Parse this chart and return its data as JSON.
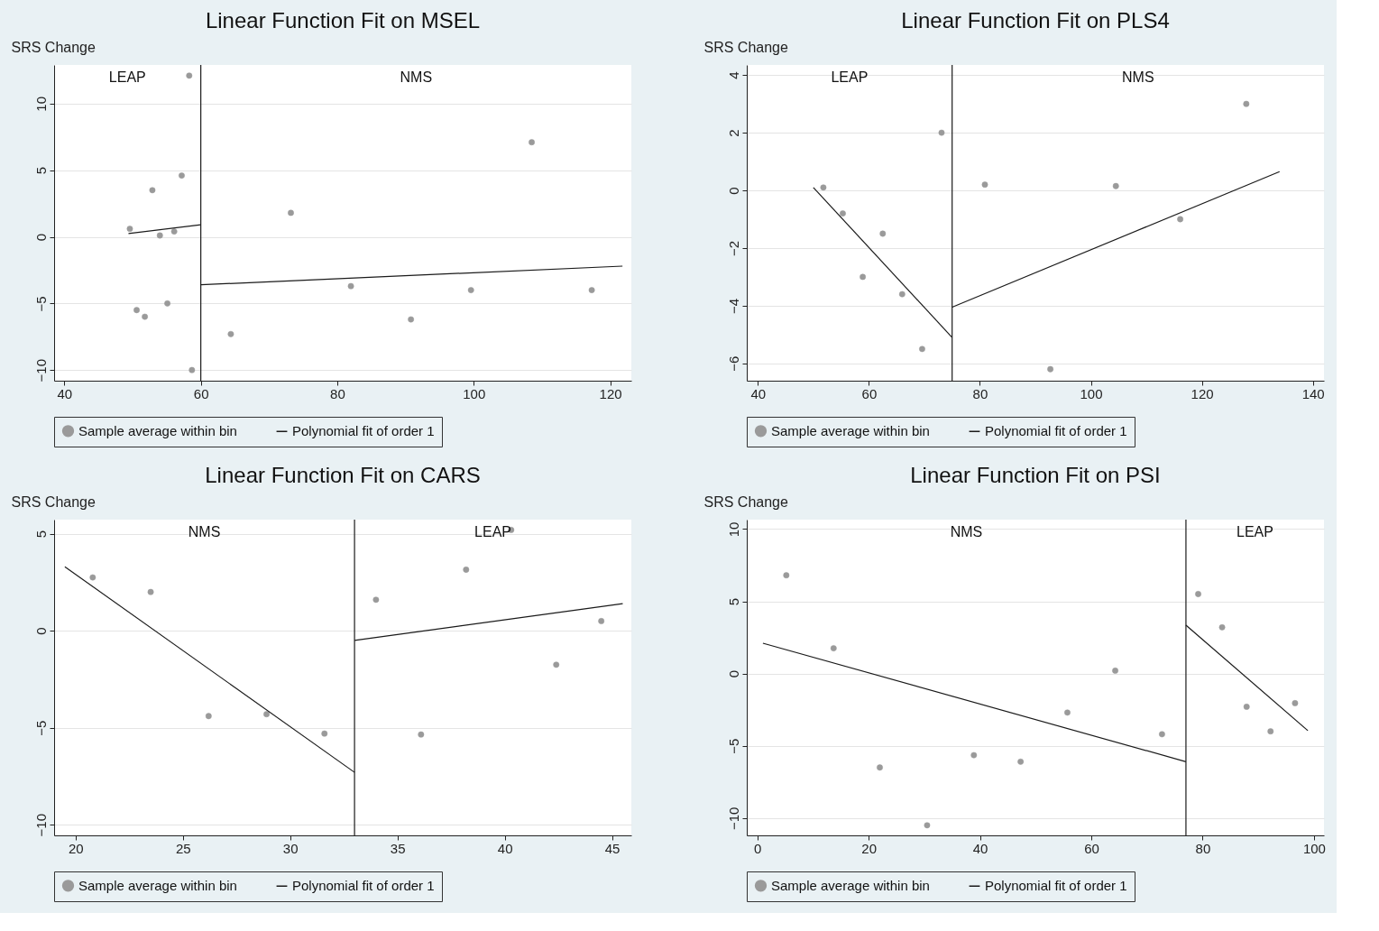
{
  "chart_data": [
    {
      "type": "scatter",
      "title": "Linear Function Fit on MSEL",
      "ylabel": "SRS Change",
      "xlim": [
        38.5,
        123.1
      ],
      "ylim": [
        -10.8,
        12.9
      ],
      "xticks": [
        40,
        60,
        80,
        100,
        120
      ],
      "yticks": [
        -10,
        -5,
        0,
        5,
        10
      ],
      "grid": "y",
      "legend": "bottom",
      "series": [
        {
          "name": "Sample average within bin",
          "type": "scatter",
          "marker": "circle",
          "color": "#9a9a9a",
          "x": [
            58.3,
            52.9,
            57.2,
            49.6,
            54.0,
            56.1,
            50.6,
            51.8,
            55.1,
            58.7,
            73.2,
            108.5,
            82.0,
            64.4,
            90.8,
            99.6,
            117.3
          ],
          "values": [
            12.1,
            3.5,
            4.6,
            0.6,
            0.1,
            0.4,
            -5.5,
            -6.0,
            -5.0,
            -10.0,
            1.8,
            7.1,
            -3.7,
            -7.3,
            -6.2,
            -4.0,
            -4.0
          ]
        },
        {
          "name": "Polynomial fit of order 1",
          "type": "line",
          "color": "#1a1a1a",
          "x": [
            49.4,
            60
          ],
          "values": [
            0.25,
            0.9
          ]
        },
        {
          "type": "line",
          "color": "#1a1a1a",
          "x": [
            60,
            121.8
          ],
          "values": [
            -3.6,
            -2.2
          ]
        }
      ],
      "ref_lines": [
        {
          "axis": "x",
          "value": 60,
          "color": "#1a1a1a"
        }
      ],
      "annotations": [
        "LEAP",
        "NMS"
      ]
    },
    {
      "type": "scatter",
      "title": "Linear Function Fit on PLS4",
      "ylabel": "SRS Change",
      "xlim": [
        38,
        142
      ],
      "ylim": [
        -6.6,
        4.35
      ],
      "xticks": [
        40,
        60,
        80,
        100,
        120,
        140
      ],
      "yticks": [
        -6,
        -4,
        -2,
        0,
        2,
        4
      ],
      "grid": "y",
      "legend": "bottom",
      "series": [
        {
          "name": "Sample average within bin",
          "type": "scatter",
          "marker": "circle",
          "color": "#9a9a9a",
          "x": [
            51.8,
            55.3,
            62.5,
            58.9,
            66.0,
            69.6,
            73.1,
            80.9,
            104.5,
            116.1,
            128.0,
            92.7
          ],
          "values": [
            0.1,
            -0.8,
            -1.5,
            -3.0,
            -3.6,
            -5.5,
            2.0,
            0.2,
            0.15,
            -1.0,
            3.0,
            -6.2
          ]
        },
        {
          "name": "Polynomial fit of order 1",
          "type": "line",
          "color": "#1a1a1a",
          "x": [
            50.0,
            75
          ],
          "values": [
            0.1,
            -5.1
          ]
        },
        {
          "type": "line",
          "color": "#1a1a1a",
          "x": [
            75,
            134.0
          ],
          "values": [
            -4.05,
            0.65
          ]
        }
      ],
      "ref_lines": [
        {
          "axis": "x",
          "value": 75,
          "color": "#1a1a1a"
        }
      ],
      "annotations": [
        "LEAP",
        "NMS"
      ]
    },
    {
      "type": "scatter",
      "title": "Linear Function Fit on CARS",
      "ylabel": "SRS Change",
      "xlim": [
        19.0,
        45.9
      ],
      "ylim": [
        -10.55,
        5.73
      ],
      "xticks": [
        20,
        25,
        30,
        35,
        40,
        45
      ],
      "yticks": [
        -10,
        -5,
        0,
        5
      ],
      "grid": "y",
      "legend": "bottom",
      "series": [
        {
          "name": "Sample average within bin",
          "type": "scatter",
          "marker": "circle",
          "color": "#9a9a9a",
          "x": [
            20.8,
            23.5,
            26.2,
            28.9,
            31.6,
            34.0,
            38.2,
            40.3,
            36.1,
            42.4,
            44.5
          ],
          "values": [
            2.75,
            2.0,
            -4.4,
            -4.3,
            -5.3,
            1.6,
            3.15,
            5.2,
            -5.35,
            -1.75,
            0.5
          ]
        },
        {
          "name": "Polynomial fit of order 1",
          "type": "line",
          "color": "#1a1a1a",
          "x": [
            19.5,
            33
          ],
          "values": [
            3.3,
            -7.3
          ]
        },
        {
          "type": "line",
          "color": "#1a1a1a",
          "x": [
            33,
            45.5
          ],
          "values": [
            -0.5,
            1.4
          ]
        }
      ],
      "ref_lines": [
        {
          "axis": "x",
          "value": 33,
          "color": "#1a1a1a"
        }
      ],
      "annotations": [
        "NMS",
        "LEAP"
      ]
    },
    {
      "type": "scatter",
      "title": "Linear Function Fit on PSI",
      "ylabel": "SRS Change",
      "xlim": [
        -1.9,
        101.8
      ],
      "ylim": [
        -11.2,
        10.65
      ],
      "xticks": [
        0,
        20,
        40,
        60,
        80,
        100
      ],
      "yticks": [
        -10,
        -5,
        0,
        5,
        10
      ],
      "grid": "y",
      "legend": "bottom",
      "series": [
        {
          "name": "Sample average within bin",
          "type": "scatter",
          "marker": "circle",
          "color": "#9a9a9a",
          "x": [
            5.2,
            13.7,
            22.0,
            30.5,
            38.9,
            47.3,
            55.7,
            64.3,
            72.7,
            79.2,
            83.5,
            87.9,
            92.2,
            96.6
          ],
          "values": [
            6.8,
            1.75,
            -6.5,
            -10.5,
            -5.65,
            -6.1,
            -2.7,
            0.2,
            -4.2,
            5.5,
            3.2,
            -2.3,
            -4.0,
            -2.05
          ]
        },
        {
          "name": "Polynomial fit of order 1",
          "type": "line",
          "color": "#1a1a1a",
          "x": [
            1.0,
            77
          ],
          "values": [
            2.1,
            -6.1
          ]
        },
        {
          "type": "line",
          "color": "#1a1a1a",
          "x": [
            77,
            98.9
          ],
          "values": [
            3.35,
            -3.95
          ]
        }
      ],
      "ref_lines": [
        {
          "axis": "x",
          "value": 77,
          "color": "#1a1a1a"
        }
      ],
      "annotations": [
        "NMS",
        "LEAP"
      ]
    }
  ]
}
